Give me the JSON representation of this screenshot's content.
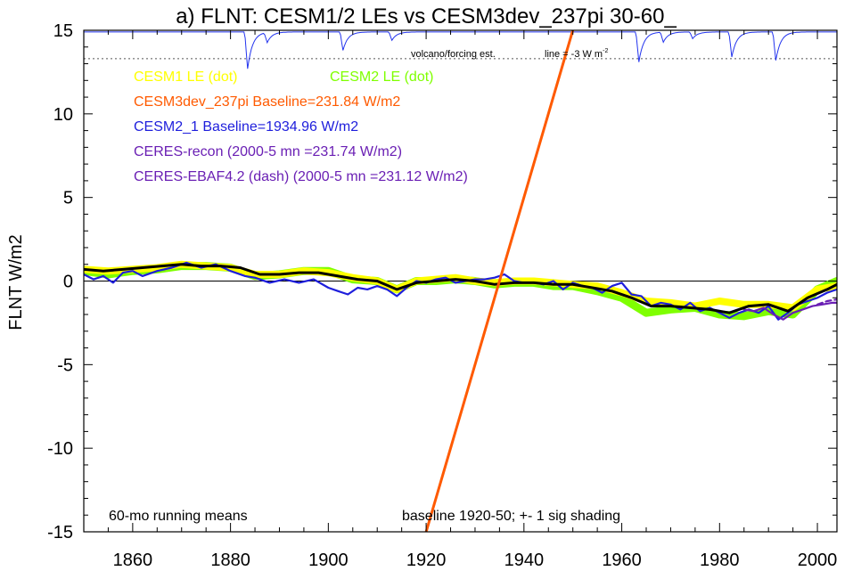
{
  "chart_data": {
    "type": "line",
    "title": "a) FLNT: CESM1/2 LEs vs CESM3dev_237pi 30-60_",
    "ylabel": "FLNT W/m2",
    "xlabel": "",
    "xlim": [
      1850,
      2004
    ],
    "ylim": [
      -15,
      15
    ],
    "x_ticks": [
      1860,
      1880,
      1900,
      1920,
      1940,
      1960,
      1980,
      2000
    ],
    "y_ticks": [
      -15,
      -10,
      -5,
      0,
      5,
      10,
      15
    ],
    "grid": false,
    "legend_entries": [
      {
        "label": "CESM1 LE (dot)",
        "color": "#ffff00"
      },
      {
        "label": "CESM2 LE (dot)",
        "color": "#7fff00"
      },
      {
        "label": "CESM3dev_237pi Baseline=231.84 W/m2",
        "color": "#ff5a00"
      },
      {
        "label": "CESM2_1 Baseline=1934.96 W/m2",
        "color": "#1e1edc"
      },
      {
        "label": "CERES-recon (2000-5 mn =231.74 W/m2)",
        "color": "#6a1fb4"
      },
      {
        "label": "CERES-EBAF4.2 (dash) (2000-5 mn =231.12 W/m2)",
        "color": "#6a1fb4"
      }
    ],
    "annotations": {
      "volcano": "volcano/forcing est.",
      "line_label": "line = -3 W m",
      "line_label_sup": "-2",
      "bottom_left": "60-mo running means",
      "bottom_center": "baseline 1920-50; +- 1 sig shading"
    },
    "volcano_line_y": 13.3,
    "volcano_dips": [
      {
        "year": 1883.5,
        "depth": 2.2
      },
      {
        "year": 1887.5,
        "depth": 0.6
      },
      {
        "year": 1903.0,
        "depth": 1.1
      },
      {
        "year": 1913.0,
        "depth": 0.5
      },
      {
        "year": 1963.5,
        "depth": 1.8
      },
      {
        "year": 1968.5,
        "depth": 0.6
      },
      {
        "year": 1974.5,
        "depth": 0.4
      },
      {
        "year": 1982.5,
        "depth": 1.5
      },
      {
        "year": 1991.5,
        "depth": 1.7
      }
    ],
    "series": [
      {
        "name": "CESM1 LE (dot)",
        "color": "#ffff00",
        "x": [
          1850,
          1855,
          1860,
          1865,
          1870,
          1875,
          1880,
          1885,
          1890,
          1895,
          1900,
          1905,
          1910,
          1914,
          1918,
          1922,
          1926,
          1930,
          1934,
          1938,
          1942,
          1946,
          1950,
          1955,
          1960,
          1965,
          1970,
          1975,
          1980,
          1985,
          1990,
          1995,
          2000,
          2004
        ],
        "y": [
          0.7,
          0.6,
          0.7,
          0.8,
          1.0,
          0.9,
          0.8,
          0.4,
          0.4,
          0.6,
          0.5,
          0.2,
          0.0,
          -0.5,
          0.0,
          0.1,
          0.2,
          0.0,
          -0.1,
          0.0,
          0.0,
          -0.1,
          -0.2,
          -0.3,
          -0.7,
          -1.2,
          -1.3,
          -1.5,
          -1.2,
          -1.4,
          -1.4,
          -1.6,
          -0.5,
          -0.3
        ]
      },
      {
        "name": "CESM2 LE (dot)",
        "color": "#7fff00",
        "x": [
          1850,
          1855,
          1860,
          1865,
          1870,
          1875,
          1880,
          1885,
          1890,
          1895,
          1900,
          1905,
          1910,
          1914,
          1918,
          1922,
          1926,
          1930,
          1934,
          1938,
          1942,
          1946,
          1950,
          1955,
          1960,
          1965,
          1970,
          1975,
          1980,
          1985,
          1990,
          1995,
          2000,
          2004
        ],
        "y": [
          0.6,
          0.4,
          0.6,
          0.7,
          0.9,
          0.9,
          0.8,
          0.3,
          0.4,
          0.6,
          0.6,
          0.1,
          0.0,
          -0.5,
          0.0,
          0.0,
          0.1,
          0.0,
          -0.2,
          -0.1,
          -0.1,
          -0.3,
          -0.3,
          -0.6,
          -1.0,
          -1.9,
          -1.7,
          -1.6,
          -2.0,
          -2.1,
          -1.8,
          -2.0,
          -0.5,
          0.0
        ]
      },
      {
        "name": "CESM3dev_237pi Baseline=231.84 W/m2",
        "color": "#ff5a00",
        "x": [
          1920,
          1950.5
        ],
        "y": [
          -15,
          15.5
        ]
      },
      {
        "name": "CESM2_1 Baseline=1934.96 W/m2",
        "color": "#1e1edc",
        "x": [
          1850,
          1852,
          1854,
          1856,
          1858,
          1860,
          1862,
          1865,
          1868,
          1871,
          1874,
          1877,
          1880,
          1883,
          1885,
          1888,
          1891,
          1894,
          1897,
          1900,
          1902,
          1904,
          1906,
          1908,
          1910,
          1912,
          1914,
          1916,
          1918,
          1920,
          1922,
          1924,
          1926,
          1928,
          1930,
          1932,
          1934,
          1936,
          1938,
          1940,
          1942,
          1944,
          1946,
          1948,
          1950,
          1952,
          1954,
          1956,
          1958,
          1960,
          1962,
          1964,
          1966,
          1968,
          1970,
          1972,
          1974,
          1976,
          1978,
          1980,
          1982,
          1984,
          1986,
          1988,
          1990,
          1992,
          1994,
          1996,
          1998,
          2000,
          2002,
          2004
        ],
        "y": [
          0.4,
          0.1,
          0.3,
          -0.1,
          0.5,
          0.6,
          0.3,
          0.6,
          0.8,
          1.1,
          0.8,
          1.0,
          0.6,
          0.3,
          0.2,
          -0.1,
          0.1,
          -0.1,
          0.1,
          -0.4,
          -0.6,
          -0.8,
          -0.4,
          -0.5,
          -0.3,
          -0.5,
          -0.9,
          -0.4,
          0.0,
          -0.1,
          0.1,
          0.2,
          -0.1,
          0.0,
          0.1,
          0.1,
          0.2,
          0.4,
          0.0,
          -0.1,
          -0.1,
          -0.2,
          0.0,
          -0.5,
          -0.1,
          -0.3,
          -0.4,
          -0.7,
          -0.3,
          -0.1,
          -0.8,
          -0.9,
          -1.5,
          -1.3,
          -1.4,
          -1.7,
          -1.3,
          -1.8,
          -1.6,
          -1.9,
          -2.2,
          -1.9,
          -1.7,
          -1.9,
          -1.5,
          -2.3,
          -1.9,
          -1.4,
          -1.2,
          -1.0,
          -0.7,
          -0.5
        ]
      },
      {
        "name": "CERES-recon (2000-5 mn =231.74 W/m2)",
        "color": "#6a1fb4",
        "x": [
          1985,
          1987,
          1989,
          1991,
          1993,
          1995,
          1997,
          1999,
          2001,
          2003,
          2004
        ],
        "y": [
          -1.7,
          -1.8,
          -1.6,
          -2.0,
          -2.3,
          -1.9,
          -1.7,
          -1.5,
          -1.4,
          -1.3,
          -1.3
        ]
      },
      {
        "name": "CERES-EBAF4.2 (dash) (2000-5 mn =231.12 W/m2)",
        "color": "#6a1fb4",
        "x": [
          2000,
          2002,
          2004
        ],
        "y": [
          -1.4,
          -1.2,
          -1.1
        ]
      },
      {
        "name": "ensemble mean",
        "color": "#000000",
        "x": [
          1850,
          1854,
          1858,
          1862,
          1866,
          1870,
          1874,
          1878,
          1882,
          1886,
          1890,
          1894,
          1898,
          1902,
          1906,
          1910,
          1914,
          1918,
          1922,
          1926,
          1930,
          1934,
          1938,
          1942,
          1946,
          1950,
          1954,
          1958,
          1962,
          1966,
          1970,
          1974,
          1978,
          1982,
          1986,
          1990,
          1994,
          1998,
          2002,
          2004
        ],
        "y": [
          0.7,
          0.6,
          0.7,
          0.8,
          0.9,
          1.0,
          0.9,
          0.9,
          0.8,
          0.4,
          0.4,
          0.5,
          0.5,
          0.3,
          0.1,
          0.0,
          -0.5,
          -0.1,
          0.0,
          0.1,
          0.0,
          -0.2,
          -0.1,
          -0.1,
          -0.2,
          -0.2,
          -0.4,
          -0.6,
          -1.0,
          -1.5,
          -1.5,
          -1.6,
          -1.7,
          -1.9,
          -1.5,
          -1.4,
          -1.8,
          -1.0,
          -0.5,
          -0.2
        ]
      }
    ]
  }
}
